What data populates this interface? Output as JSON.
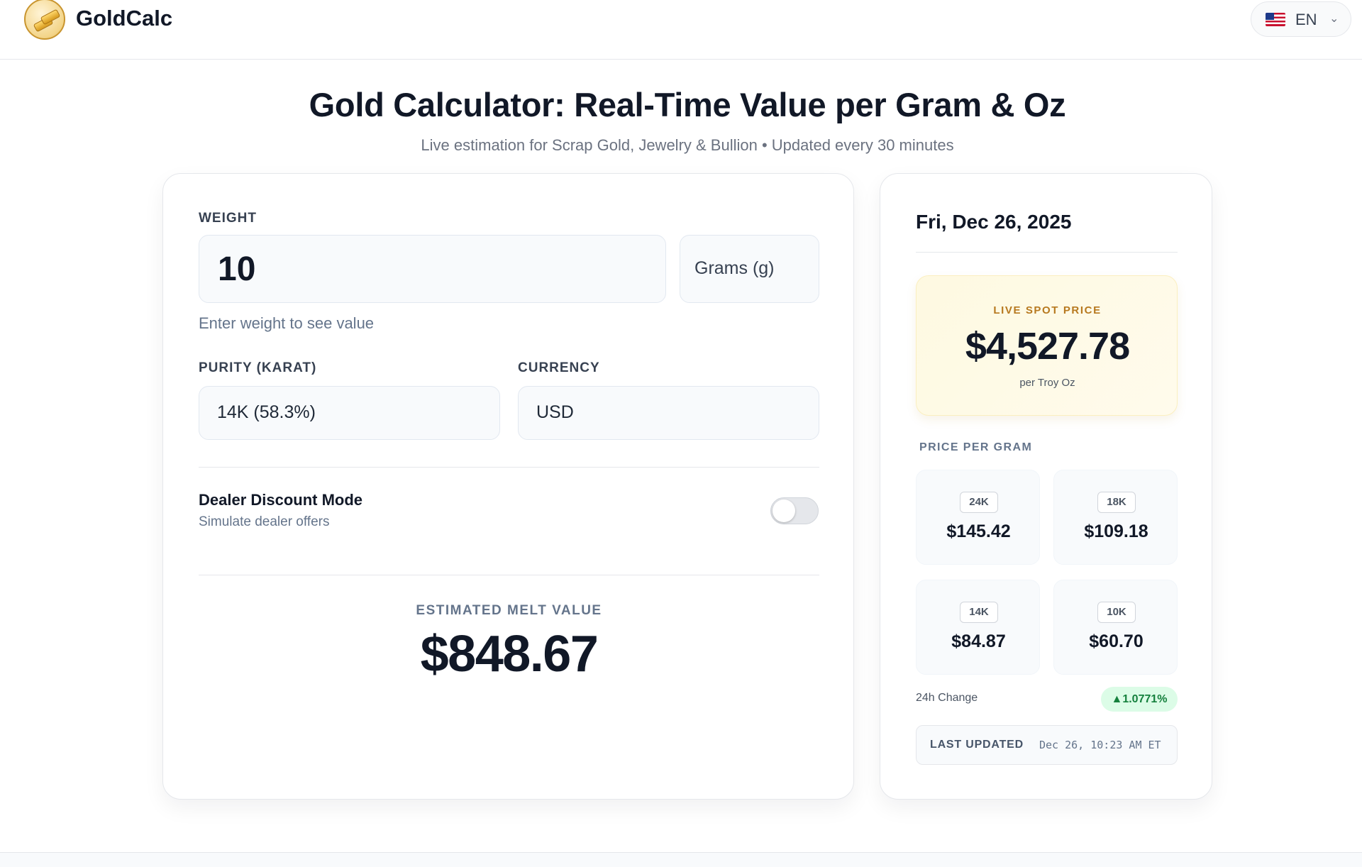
{
  "header": {
    "logo_text": "GoldCalc",
    "language": "EN"
  },
  "page": {
    "title": "Gold Calculator: Real-Time Value per Gram & Oz",
    "subtitle": "Live estimation for Scrap Gold, Jewelry & Bullion • Updated every 30 minutes"
  },
  "calculator": {
    "weight_label": "WEIGHT",
    "weight_value": "10",
    "unit_value": "Grams (g)",
    "weight_hint": "Enter weight to see value",
    "purity_label": "PURITY (KARAT)",
    "purity_value": "14K (58.3%)",
    "currency_label": "CURRENCY",
    "currency_value": "USD",
    "dealer_title": "Dealer Discount Mode",
    "dealer_subtitle": "Simulate dealer offers",
    "dealer_enabled": false,
    "estimated_label": "ESTIMATED MELT VALUE",
    "estimated_value": "$848.67"
  },
  "sidebar": {
    "date": "Fri, Dec 26, 2025",
    "spot_label": "LIVE SPOT PRICE",
    "spot_value": "$4,527.78",
    "spot_unit": "per Troy Oz",
    "ppg_label": "PRICE PER GRAM",
    "karats": [
      {
        "badge": "24K",
        "value": "$145.42"
      },
      {
        "badge": "18K",
        "value": "$109.18"
      },
      {
        "badge": "14K",
        "value": "$84.87"
      },
      {
        "badge": "10K",
        "value": "$60.70"
      }
    ],
    "change_label": "24h Change",
    "change_value": "▲1.0771%",
    "updated_label": "LAST UPDATED",
    "updated_value": "Dec 26, 10:23 AM ET"
  },
  "colors": {
    "accent_gold": "#b7791f",
    "positive_green": "#15803d"
  }
}
